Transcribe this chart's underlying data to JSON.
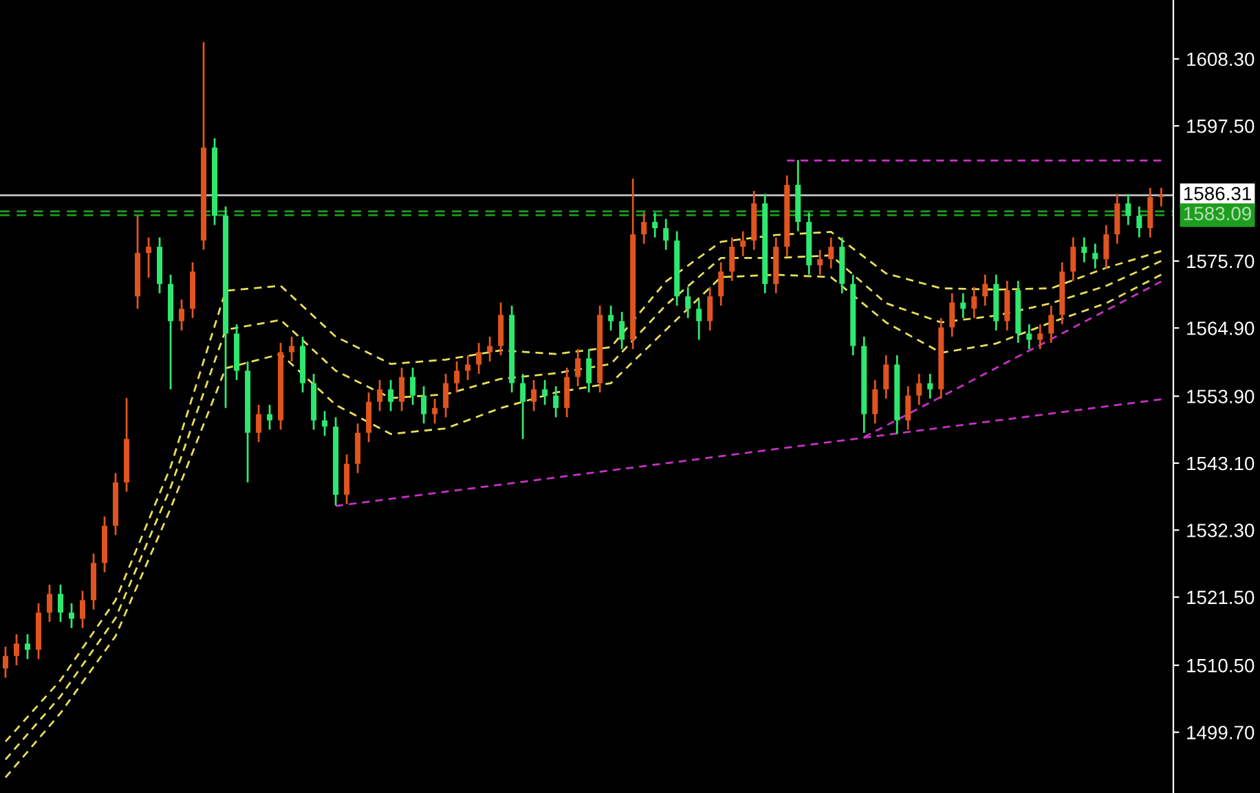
{
  "chart_data": {
    "type": "candlestick",
    "categories": [
      null,
      null,
      null,
      null,
      null,
      null,
      null,
      null,
      null,
      null,
      null,
      null,
      null,
      null,
      null,
      null,
      null,
      null,
      null,
      null,
      null,
      null,
      null,
      null,
      null,
      null,
      null,
      null,
      null,
      null,
      null,
      null,
      null,
      null,
      null,
      null,
      null,
      null,
      null,
      null,
      null,
      null,
      null,
      null,
      null,
      null,
      null,
      null,
      null,
      null,
      null,
      null,
      null,
      null,
      null,
      null,
      null,
      null,
      null,
      null,
      null,
      null,
      null,
      null,
      null,
      null,
      null,
      null,
      null,
      null,
      null,
      null,
      null,
      null,
      null,
      null,
      null,
      null,
      null,
      null,
      null,
      null,
      null,
      null,
      null,
      null,
      null,
      null,
      null,
      null,
      null,
      null,
      null,
      null,
      null,
      null,
      null,
      null,
      null,
      null,
      null,
      null,
      null,
      null,
      null,
      null
    ],
    "ohlc": [
      [
        1510,
        1513.5,
        1508.5,
        1512
      ],
      [
        1512,
        1515.5,
        1510.5,
        1514
      ],
      [
        1514,
        1515.5,
        1511.5,
        1513
      ],
      [
        1513,
        1520.5,
        1511.5,
        1519
      ],
      [
        1519,
        1523.5,
        1517.5,
        1522
      ],
      [
        1522,
        1523.5,
        1517.5,
        1519
      ],
      [
        1519,
        1520.5,
        1516.5,
        1518
      ],
      [
        1518,
        1522.5,
        1516.5,
        1521
      ],
      [
        1521,
        1528.5,
        1519.5,
        1527
      ],
      [
        1527,
        1534.5,
        1525.5,
        1533
      ],
      [
        1533,
        1541.5,
        1531.5,
        1540
      ],
      [
        1540,
        1553.6,
        1538.5,
        1547
      ],
      [
        1570,
        1583,
        1568,
        1577
      ],
      [
        1577,
        1579.5,
        1573,
        1578
      ],
      [
        1578,
        1579.5,
        1570.5,
        1572
      ],
      [
        1572,
        1573.5,
        1555,
        1566
      ],
      [
        1566,
        1569.5,
        1564.5,
        1568
      ],
      [
        1568,
        1575.5,
        1566.5,
        1574
      ],
      [
        1579,
        1611,
        1577.5,
        1594
      ],
      [
        1594,
        1595.5,
        1581.5,
        1583
      ],
      [
        1583,
        1584.5,
        1552,
        1564
      ],
      [
        1564,
        1565.5,
        1556.5,
        1558
      ],
      [
        1558,
        1559.5,
        1540,
        1548
      ],
      [
        1548,
        1552.5,
        1546.5,
        1551
      ],
      [
        1551,
        1552.5,
        1548.5,
        1550
      ],
      [
        1550,
        1562.5,
        1548.5,
        1561
      ],
      [
        1561,
        1563.5,
        1559.5,
        1562
      ],
      [
        1562,
        1563.5,
        1554.5,
        1556
      ],
      [
        1556,
        1557.5,
        1548.5,
        1550
      ],
      [
        1550,
        1551.5,
        1547.5,
        1549
      ],
      [
        1549,
        1550.5,
        1536.3,
        1538
      ],
      [
        1538,
        1544.5,
        1536.5,
        1543
      ],
      [
        1543,
        1549.5,
        1541.5,
        1548
      ],
      [
        1548,
        1554.5,
        1546.5,
        1553
      ],
      [
        1553,
        1556.5,
        1551.5,
        1555
      ],
      [
        1555,
        1556.5,
        1551.5,
        1553
      ],
      [
        1553,
        1558.5,
        1551.5,
        1557
      ],
      [
        1557,
        1558.5,
        1552.5,
        1554
      ],
      [
        1554,
        1555.5,
        1549.5,
        1551
      ],
      [
        1551,
        1553.5,
        1549.5,
        1552
      ],
      [
        1552,
        1557.5,
        1550.5,
        1556
      ],
      [
        1556,
        1559.5,
        1554.5,
        1558
      ],
      [
        1558,
        1560.5,
        1556.5,
        1559
      ],
      [
        1559,
        1562.5,
        1557.5,
        1561
      ],
      [
        1561,
        1563.5,
        1559.5,
        1562
      ],
      [
        1562,
        1569,
        1560.5,
        1567
      ],
      [
        1567,
        1568.5,
        1554.5,
        1556
      ],
      [
        1556,
        1557.5,
        1547,
        1553
      ],
      [
        1553,
        1556.5,
        1551.5,
        1555
      ],
      [
        1555,
        1556.5,
        1552.5,
        1554
      ],
      [
        1554,
        1555.5,
        1550.5,
        1552
      ],
      [
        1552,
        1558.5,
        1550.5,
        1557
      ],
      [
        1557,
        1561.5,
        1555.5,
        1560
      ],
      [
        1560,
        1561.5,
        1554.5,
        1556
      ],
      [
        1556,
        1568.5,
        1554.5,
        1567
      ],
      [
        1567,
        1568.5,
        1564.5,
        1566
      ],
      [
        1566,
        1567.5,
        1561.5,
        1563
      ],
      [
        1563,
        1589,
        1561.5,
        1580
      ],
      [
        1580,
        1583.5,
        1578.5,
        1582
      ],
      [
        1582,
        1583.5,
        1579.5,
        1581
      ],
      [
        1581,
        1582.5,
        1577.5,
        1579
      ],
      [
        1579,
        1580.5,
        1568.5,
        1570
      ],
      [
        1570,
        1571.5,
        1566.5,
        1568
      ],
      [
        1568,
        1569.5,
        1563,
        1566
      ],
      [
        1566,
        1571.5,
        1564.5,
        1570
      ],
      [
        1570,
        1575.5,
        1568.5,
        1574
      ],
      [
        1574,
        1579.5,
        1572.5,
        1578
      ],
      [
        1578,
        1580.5,
        1576.5,
        1579
      ],
      [
        1579,
        1587,
        1577.5,
        1585
      ],
      [
        1585,
        1586.5,
        1570.5,
        1572
      ],
      [
        1572,
        1579.5,
        1570.5,
        1578
      ],
      [
        1578,
        1589.5,
        1576.5,
        1588
      ],
      [
        1588,
        1592,
        1580.5,
        1582
      ],
      [
        1582,
        1583.5,
        1573.5,
        1575
      ],
      [
        1575,
        1577.5,
        1573.5,
        1576
      ],
      [
        1576,
        1579.5,
        1574.5,
        1578
      ],
      [
        1578,
        1579.5,
        1570.5,
        1572
      ],
      [
        1572,
        1573.5,
        1560.5,
        1562
      ],
      [
        1562,
        1563.5,
        1548,
        1551
      ],
      [
        1551,
        1556.5,
        1549.5,
        1555
      ],
      [
        1555,
        1560.5,
        1553.5,
        1559
      ],
      [
        1559,
        1560.5,
        1547.8,
        1550
      ],
      [
        1550,
        1555.5,
        1548.5,
        1554
      ],
      [
        1554,
        1557.5,
        1552.5,
        1556
      ],
      [
        1556,
        1557.5,
        1553.5,
        1555
      ],
      [
        1555,
        1566.5,
        1553.5,
        1565
      ],
      [
        1565,
        1570.5,
        1563.5,
        1569
      ],
      [
        1569,
        1570.5,
        1566.5,
        1568
      ],
      [
        1568,
        1571.5,
        1566.5,
        1570
      ],
      [
        1570,
        1573.5,
        1568.5,
        1572
      ],
      [
        1572,
        1573.5,
        1564.5,
        1566
      ],
      [
        1566,
        1572.5,
        1564.5,
        1571
      ],
      [
        1571,
        1572.5,
        1562.5,
        1564
      ],
      [
        1564,
        1565.5,
        1561.5,
        1563
      ],
      [
        1563,
        1565.5,
        1561.5,
        1564
      ],
      [
        1564,
        1568.5,
        1562.5,
        1567
      ],
      [
        1567,
        1575.5,
        1565.5,
        1574
      ],
      [
        1574,
        1579.5,
        1572.5,
        1578
      ],
      [
        1578,
        1579.5,
        1575.5,
        1577
      ],
      [
        1577,
        1578.5,
        1574.5,
        1576
      ],
      [
        1576,
        1581.5,
        1574.5,
        1580
      ],
      [
        1580,
        1586.5,
        1578.5,
        1585
      ],
      [
        1585,
        1586.5,
        1581.5,
        1583
      ],
      [
        1583,
        1584.5,
        1579.5,
        1581
      ],
      [
        1581,
        1587.5,
        1579.5,
        1586
      ],
      [
        1586,
        1587.5,
        1584.5,
        1586.3
      ]
    ],
    "colors": [
      "#e0541f",
      "#e0541f",
      "#2ee86e",
      "#e0541f",
      "#e0541f",
      "#2ee86e",
      "#2ee86e",
      "#e0541f",
      "#e0541f",
      "#e0541f",
      "#e0541f",
      "#e0541f",
      "#e0541f",
      "#e0541f",
      "#2ee86e",
      "#2ee86e",
      "#e0541f",
      "#e0541f",
      "#e0541f",
      "#2ee86e",
      "#2ee86e",
      "#2ee86e",
      "#2ee86e",
      "#e0541f",
      "#2ee86e",
      "#e0541f",
      "#e0541f",
      "#2ee86e",
      "#2ee86e",
      "#2ee86e",
      "#2ee86e",
      "#e0541f",
      "#e0541f",
      "#e0541f",
      "#e0541f",
      "#2ee86e",
      "#e0541f",
      "#2ee86e",
      "#2ee86e",
      "#e0541f",
      "#e0541f",
      "#e0541f",
      "#e0541f",
      "#e0541f",
      "#e0541f",
      "#e0541f",
      "#2ee86e",
      "#2ee86e",
      "#e0541f",
      "#2ee86e",
      "#2ee86e",
      "#e0541f",
      "#e0541f",
      "#2ee86e",
      "#e0541f",
      "#2ee86e",
      "#2ee86e",
      "#e0541f",
      "#e0541f",
      "#2ee86e",
      "#2ee86e",
      "#2ee86e",
      "#2ee86e",
      "#2ee86e",
      "#e0541f",
      "#e0541f",
      "#e0541f",
      "#e0541f",
      "#e0541f",
      "#2ee86e",
      "#e0541f",
      "#e0541f",
      "#2ee86e",
      "#2ee86e",
      "#e0541f",
      "#e0541f",
      "#2ee86e",
      "#2ee86e",
      "#2ee86e",
      "#e0541f",
      "#e0541f",
      "#2ee86e",
      "#e0541f",
      "#e0541f",
      "#2ee86e",
      "#e0541f",
      "#e0541f",
      "#2ee86e",
      "#e0541f",
      "#e0541f",
      "#2ee86e",
      "#e0541f",
      "#2ee86e",
      "#2ee86e",
      "#e0541f",
      "#e0541f",
      "#e0541f",
      "#e0541f",
      "#2ee86e",
      "#2ee86e",
      "#e0541f",
      "#e0541f",
      "#2ee86e",
      "#2ee86e",
      "#e0541f",
      "#e0541f"
    ],
    "series": [
      {
        "type": "line",
        "color": "#e8e05a",
        "line_style": "dashed",
        "values": [
          1498.2,
          null,
          null,
          null,
          null,
          1508.1,
          null,
          null,
          null,
          null,
          1521.0,
          null,
          null,
          null,
          null,
          1542.5,
          null,
          null,
          null,
          null,
          1570.9,
          null,
          null,
          null,
          null,
          1571.7,
          null,
          null,
          null,
          null,
          1563.5,
          null,
          null,
          null,
          null,
          1559.1,
          null,
          null,
          null,
          null,
          1559.8,
          null,
          null,
          null,
          null,
          1561.3,
          null,
          null,
          null,
          null,
          1560.7,
          null,
          null,
          null,
          null,
          1561.8,
          null,
          null,
          null,
          null,
          1572.4,
          null,
          null,
          null,
          null,
          1578.8,
          null,
          null,
          null,
          null,
          1579.9,
          null,
          null,
          null,
          null,
          1580.4,
          null,
          null,
          null,
          null,
          1573.7,
          null,
          null,
          null,
          null,
          1571.3,
          null,
          null,
          null,
          null,
          1571.1,
          null,
          null,
          null,
          null,
          1571.3,
          null,
          null,
          null,
          null,
          1574.6,
          null,
          null,
          null,
          null,
          1577.3
        ]
      },
      {
        "type": "line",
        "color": "#e8e05a",
        "line_style": "dashed",
        "values": [
          1495.3,
          null,
          null,
          null,
          null,
          1505.5,
          null,
          null,
          null,
          null,
          1518.1,
          null,
          null,
          null,
          null,
          1539.2,
          null,
          null,
          null,
          null,
          1564.6,
          null,
          null,
          null,
          null,
          1566.2,
          null,
          null,
          null,
          null,
          1558.0,
          null,
          null,
          null,
          null,
          1553.6,
          null,
          null,
          null,
          null,
          1554.2,
          null,
          null,
          null,
          null,
          1556.7,
          null,
          null,
          null,
          null,
          1557.6,
          null,
          null,
          null,
          null,
          1559.1,
          null,
          null,
          null,
          null,
          1568.6,
          null,
          null,
          null,
          null,
          1576.2,
          null,
          null,
          null,
          null,
          1576.2,
          null,
          null,
          null,
          null,
          1576.6,
          null,
          null,
          null,
          null,
          1568.9,
          null,
          null,
          null,
          null,
          1565.8,
          null,
          null,
          null,
          null,
          1566.9,
          null,
          null,
          null,
          null,
          1568.9,
          null,
          null,
          null,
          null,
          1571.7,
          null,
          null,
          null,
          null,
          1575.7
        ]
      },
      {
        "type": "line",
        "color": "#e8e05a",
        "line_style": "dashed",
        "values": [
          1492.4,
          null,
          null,
          null,
          null,
          1502.8,
          null,
          null,
          null,
          null,
          1515.2,
          null,
          null,
          null,
          null,
          1535.8,
          null,
          null,
          null,
          null,
          1558.4,
          null,
          null,
          null,
          null,
          1560.7,
          null,
          null,
          null,
          null,
          1552.5,
          null,
          null,
          null,
          null,
          1547.8,
          null,
          null,
          null,
          null,
          1548.7,
          null,
          null,
          null,
          null,
          1552.0,
          null,
          null,
          null,
          null,
          1554.5,
          null,
          null,
          null,
          null,
          1556.0,
          null,
          null,
          null,
          null,
          1564.6,
          null,
          null,
          null,
          null,
          1573.1,
          null,
          null,
          null,
          null,
          1573.5,
          null,
          null,
          null,
          null,
          1573.1,
          null,
          null,
          null,
          null,
          1565.8,
          null,
          null,
          null,
          null,
          1560.9,
          null,
          null,
          null,
          null,
          1562.4,
          null,
          null,
          null,
          null,
          1565.8,
          null,
          null,
          null,
          null,
          1568.9,
          null,
          null,
          null,
          null,
          1573.5
        ]
      },
      {
        "type": "line",
        "color": "#c832c8",
        "line_style": "dashed",
        "values": [
          null,
          null,
          null,
          null,
          null,
          null,
          null,
          null,
          null,
          null,
          null,
          null,
          null,
          null,
          null,
          null,
          null,
          null,
          null,
          null,
          null,
          null,
          null,
          null,
          null,
          null,
          null,
          null,
          null,
          null,
          1536.2,
          null,
          null,
          null,
          null,
          null,
          null,
          null,
          null,
          null,
          null,
          null,
          null,
          null,
          null,
          null,
          null,
          null,
          null,
          null,
          null,
          null,
          null,
          null,
          null,
          null,
          null,
          null,
          null,
          null,
          null,
          null,
          null,
          null,
          null,
          null,
          null,
          null,
          null,
          null,
          null,
          null,
          null,
          null,
          null,
          null,
          null,
          null,
          null,
          null,
          null,
          null,
          null,
          null,
          null,
          null,
          null,
          null,
          null,
          null,
          null,
          null,
          null,
          null,
          null,
          null,
          null,
          null,
          null,
          null,
          null,
          null,
          null,
          null,
          null,
          1553.4
        ]
      },
      {
        "type": "line",
        "color": "#c832c8",
        "line_style": "dashed",
        "values": [
          null,
          null,
          null,
          null,
          null,
          null,
          null,
          null,
          null,
          null,
          null,
          null,
          null,
          null,
          null,
          null,
          null,
          null,
          null,
          null,
          null,
          null,
          null,
          null,
          null,
          null,
          null,
          null,
          null,
          null,
          null,
          null,
          null,
          null,
          null,
          null,
          null,
          null,
          null,
          null,
          null,
          null,
          null,
          null,
          null,
          null,
          null,
          null,
          null,
          null,
          null,
          null,
          null,
          null,
          null,
          null,
          null,
          null,
          null,
          null,
          null,
          null,
          null,
          null,
          null,
          null,
          null,
          null,
          null,
          null,
          null,
          null,
          null,
          null,
          null,
          null,
          null,
          null,
          1547.3,
          null,
          null,
          null,
          null,
          null,
          null,
          null,
          null,
          null,
          null,
          null,
          null,
          null,
          null,
          null,
          null,
          null,
          null,
          null,
          null,
          null,
          null,
          null,
          null,
          null,
          null,
          1572.4
        ]
      },
      {
        "type": "line",
        "color": "#c832c8",
        "line_style": "dashed",
        "values": [
          null,
          null,
          null,
          null,
          null,
          null,
          null,
          null,
          null,
          null,
          null,
          null,
          null,
          null,
          null,
          null,
          null,
          null,
          null,
          null,
          null,
          null,
          null,
          null,
          null,
          null,
          null,
          null,
          null,
          null,
          null,
          null,
          null,
          null,
          null,
          null,
          null,
          null,
          null,
          null,
          null,
          null,
          null,
          null,
          null,
          null,
          null,
          null,
          null,
          null,
          null,
          null,
          null,
          null,
          null,
          null,
          null,
          null,
          null,
          null,
          null,
          null,
          null,
          null,
          null,
          null,
          null,
          null,
          null,
          null,
          null,
          1591.9,
          null,
          null,
          null,
          null,
          null,
          null,
          null,
          null,
          null,
          null,
          null,
          null,
          null,
          null,
          null,
          null,
          null,
          null,
          null,
          null,
          null,
          null,
          null,
          null,
          null,
          null,
          null,
          null,
          null,
          null,
          null,
          null,
          null,
          1591.9
        ]
      }
    ],
    "ref_lines": [
      {
        "axis": "y",
        "value": 1586.31,
        "label": "1586.31",
        "color": "#c8c8c8",
        "line_style": "solid"
      },
      {
        "axis": "y",
        "value": 1583.7,
        "color": "#1e9e1e",
        "line_style": "dotted"
      },
      {
        "axis": "y",
        "value": 1583.09,
        "label": "1583.09",
        "color": "#1e9e1e",
        "line_style": "dotted"
      }
    ],
    "ylim": [
      1489.9,
      1617.8
    ],
    "yticks": [
      {
        "value": 1608.3,
        "label": "1608.30"
      },
      {
        "value": 1597.5,
        "label": "1597.50"
      },
      {
        "value": 1575.7,
        "label": "1575.70"
      },
      {
        "value": 1564.9,
        "label": "1564.90"
      },
      {
        "value": 1553.9,
        "label": "1553.90"
      },
      {
        "value": 1543.1,
        "label": "1543.10"
      },
      {
        "value": 1532.3,
        "label": "1532.30"
      },
      {
        "value": 1521.5,
        "label": "1521.50"
      },
      {
        "value": 1510.5,
        "label": "1510.50"
      },
      {
        "value": 1499.7,
        "label": "1499.70"
      }
    ],
    "tick_labels": "y"
  }
}
